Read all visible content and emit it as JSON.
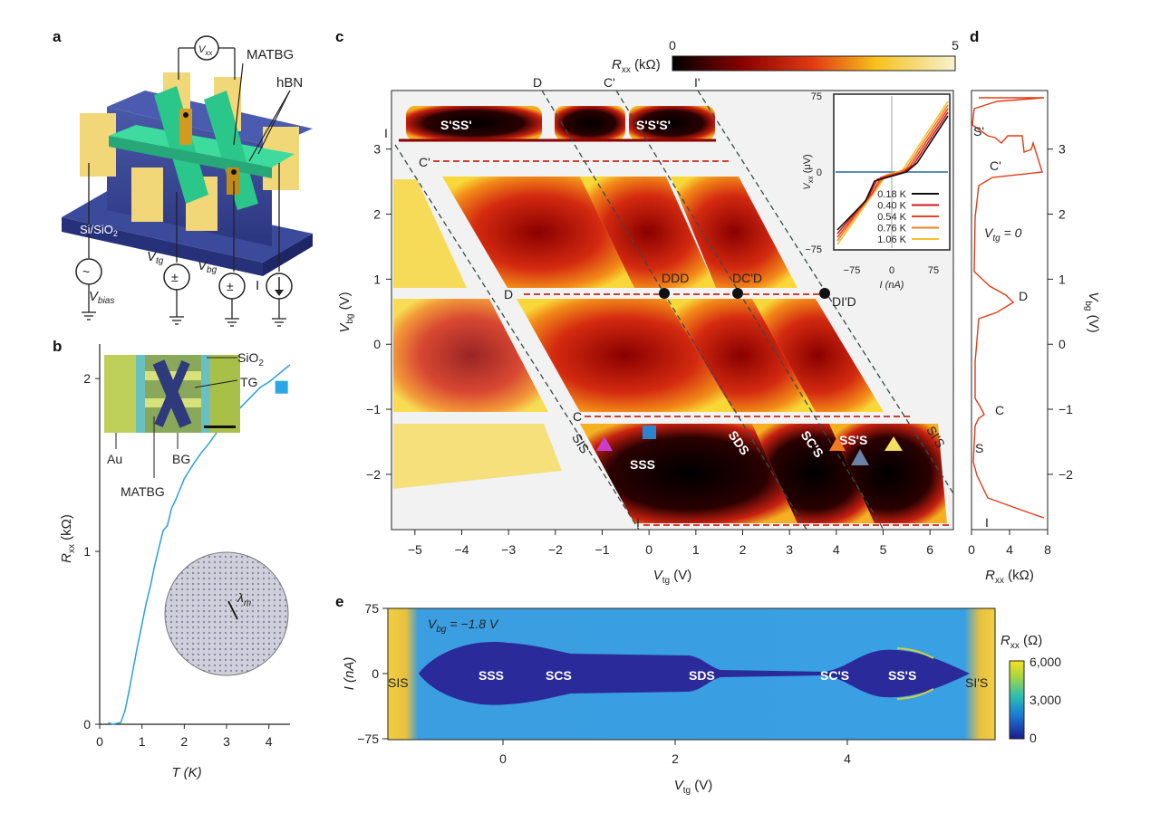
{
  "panel_labels": {
    "a": "a",
    "b": "b",
    "c": "c",
    "d": "d",
    "e": "e"
  },
  "panel_a": {
    "vxx": "V",
    "vxx_sub": "xx",
    "matbg": "MATBG",
    "hbn": "hBN",
    "substrate": "Si/SiO",
    "substrate_sub": "2",
    "vtg": "V",
    "vtg_sub": "tg",
    "vbg": "V",
    "vbg_sub": "bg",
    "current": "I",
    "vbias": "V",
    "vbias_sub": "bias",
    "pm": "±",
    "tilde": "~"
  },
  "panel_b": {
    "inset_labels": {
      "sio2": "SiO",
      "sio2_sub": "2",
      "tg": "TG",
      "au": "Au",
      "bg": "BG",
      "matbg": "MATBG"
    },
    "moire_label": "λ",
    "moire_sub": "m",
    "chart_data": {
      "type": "line",
      "x": [
        0.2,
        0.3,
        0.5,
        0.6,
        0.7,
        0.8,
        0.9,
        1.0,
        1.1,
        1.2,
        1.3,
        1.4,
        1.5,
        1.6,
        1.7,
        1.8,
        1.9,
        2.0,
        2.2,
        2.4,
        2.6,
        2.8,
        3.0,
        3.2,
        3.4,
        3.6,
        3.8,
        4.0,
        4.2,
        4.4,
        4.5
      ],
      "y": [
        0.01,
        0.0,
        0.01,
        0.08,
        0.2,
        0.33,
        0.46,
        0.58,
        0.7,
        0.8,
        0.92,
        1.02,
        1.12,
        1.15,
        1.25,
        1.3,
        1.36,
        1.42,
        1.5,
        1.57,
        1.63,
        1.7,
        1.76,
        1.8,
        1.85,
        1.9,
        1.95,
        1.98,
        2.02,
        2.06,
        2.08
      ],
      "xlabel": "T (K)",
      "ylabel": "R",
      "ylabel_sub": "xx",
      "ylabel_unit": " (kΩ)",
      "xticks": [
        "0",
        "1",
        "2",
        "3",
        "4"
      ],
      "yticks": [
        "0",
        "1",
        "2"
      ],
      "xlim": [
        0,
        4.5
      ],
      "ylim": [
        0,
        2.2
      ],
      "marker": {
        "x": 4.3,
        "y": 1.95,
        "color": "#2aa7e6"
      }
    }
  },
  "panel_c": {
    "chart_data": {
      "type": "heatmap",
      "xlabel": "V",
      "xlabel_sub": "tg",
      "xlabel_unit": " (V)",
      "ylabel": "V",
      "ylabel_sub": "bg",
      "ylabel_unit": " (V)",
      "xlim": [
        -5.5,
        6.5
      ],
      "ylim": [
        -2.85,
        3.9
      ],
      "xticks": [
        "−5",
        "−4",
        "−3",
        "−2",
        "−1",
        "0",
        "1",
        "2",
        "3",
        "4",
        "5",
        "6"
      ],
      "yticks": [
        "−2",
        "−1",
        "0",
        "1",
        "2",
        "3"
      ],
      "colorbar": {
        "label": "R",
        "label_sub": "xx",
        "label_unit": " (kΩ)",
        "min": "0",
        "max": "5"
      }
    },
    "line_labels_top": [
      "D",
      "C'",
      "I'"
    ],
    "line_labels_left": {
      "I": "I",
      "C'": "C'",
      "D": "D",
      "C": "C",
      "I_bottom": "I"
    },
    "regions": [
      "S'SS'",
      "S'S'S'",
      "SSS",
      "SDS",
      "SC'S",
      "SS'S",
      "SIS",
      "SI'S"
    ],
    "dots": [
      "DDD",
      "DC'D",
      "DI'D"
    ],
    "inset": {
      "chart_data": {
        "type": "line",
        "xlabel": "I (nA)",
        "ylabel": "V",
        "ylabel_sub": "xx",
        "ylabel_unit": " (μV)",
        "xticks": [
          "−75",
          "0",
          "75"
        ],
        "yticks": [
          "75",
          "0",
          "−75"
        ],
        "series": [
          {
            "name": "0.18 K",
            "color": "#111111"
          },
          {
            "name": "0.40 K",
            "color": "#d01818"
          },
          {
            "name": "0.54 K",
            "color": "#e84020"
          },
          {
            "name": "0.76 K",
            "color": "#f08020"
          },
          {
            "name": "1.06 K",
            "color": "#f2c030"
          }
        ]
      }
    }
  },
  "panel_d": {
    "chart_data": {
      "type": "line",
      "xlabel": "R",
      "xlabel_sub": "xx",
      "xlabel_unit": " (kΩ)",
      "ylabel": "V",
      "ylabel_sub": "bg",
      "ylabel_unit": " (V)",
      "xticks": [
        "0",
        "4",
        "8"
      ],
      "yticks": [
        "3",
        "2",
        "1",
        "0",
        "−1",
        "−2"
      ],
      "annotation": "V",
      "annotation_sub": "tg",
      "annotation_rest": " = 0",
      "labels": [
        "S'",
        "C'",
        "D",
        "C",
        "S",
        "I"
      ]
    }
  },
  "panel_e": {
    "chart_data": {
      "type": "heatmap",
      "xlabel": "V",
      "xlabel_sub": "tg",
      "xlabel_unit": " (V)",
      "ylabel": "I (nA)",
      "xticks": [
        "0",
        "2",
        "4"
      ],
      "yticks": [
        "75",
        "0",
        "−75"
      ],
      "annotation": "V",
      "annotation_sub": "bg",
      "annotation_rest": " = −1.8 V",
      "regions": [
        "SIS",
        "SSS",
        "SCS",
        "SDS",
        "SC'S",
        "SS'S",
        "SI'S"
      ],
      "colorbar": {
        "label": "R",
        "label_sub": "xx",
        "label_unit": " (Ω)",
        "ticks": [
          "6,000",
          "3,000",
          "0"
        ]
      }
    }
  }
}
